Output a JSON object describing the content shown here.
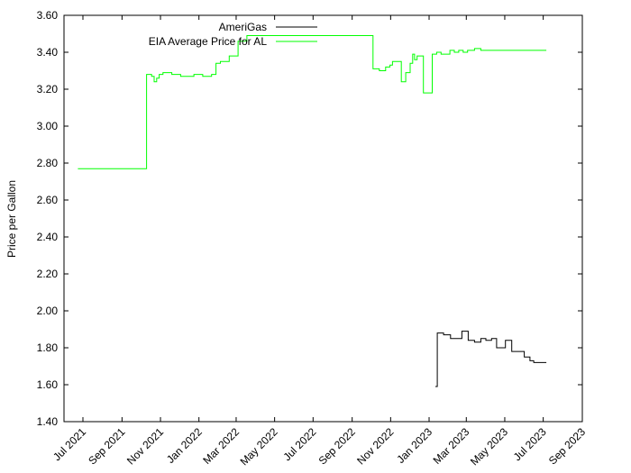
{
  "chart_data": {
    "type": "line",
    "title": "",
    "xlabel": "",
    "ylabel": "Price per Gallon",
    "ylim": [
      1.4,
      3.6
    ],
    "y_ticks": [
      "1.40",
      "1.60",
      "1.80",
      "2.00",
      "2.20",
      "2.40",
      "2.60",
      "2.80",
      "3.00",
      "3.20",
      "3.40",
      "3.60"
    ],
    "xlim": [
      "2021-06-01",
      "2023-09-01"
    ],
    "x_ticks": [
      {
        "date": "2021-07-01",
        "label": "Jul 2021"
      },
      {
        "date": "2021-09-01",
        "label": "Sep 2021"
      },
      {
        "date": "2021-11-01",
        "label": "Nov 2021"
      },
      {
        "date": "2022-01-01",
        "label": "Jan 2022"
      },
      {
        "date": "2022-03-01",
        "label": "Mar 2022"
      },
      {
        "date": "2022-05-01",
        "label": "May 2022"
      },
      {
        "date": "2022-07-01",
        "label": "Jul 2022"
      },
      {
        "date": "2022-09-01",
        "label": "Sep 2022"
      },
      {
        "date": "2022-11-01",
        "label": "Nov 2022"
      },
      {
        "date": "2023-01-01",
        "label": "Jan 2023"
      },
      {
        "date": "2023-03-01",
        "label": "Mar 2023"
      },
      {
        "date": "2023-05-01",
        "label": "May 2023"
      },
      {
        "date": "2023-07-01",
        "label": "Jul 2023"
      },
      {
        "date": "2023-09-01",
        "label": "Sep 2023"
      }
    ],
    "legend_position": "top-center",
    "grid": false,
    "series": [
      {
        "name": "AmeriGas",
        "color": "#000000",
        "step": true,
        "points": [
          [
            "2023-01-11",
            1.59
          ],
          [
            "2023-01-14",
            1.88
          ],
          [
            "2023-01-24",
            1.87
          ],
          [
            "2023-02-04",
            1.85
          ],
          [
            "2023-02-22",
            1.89
          ],
          [
            "2023-03-04",
            1.84
          ],
          [
            "2023-03-14",
            1.83
          ],
          [
            "2023-03-24",
            1.85
          ],
          [
            "2023-04-01",
            1.84
          ],
          [
            "2023-04-10",
            1.85
          ],
          [
            "2023-04-18",
            1.8
          ],
          [
            "2023-05-02",
            1.84
          ],
          [
            "2023-05-12",
            1.78
          ],
          [
            "2023-06-01",
            1.75
          ],
          [
            "2023-06-10",
            1.73
          ],
          [
            "2023-06-16",
            1.72
          ],
          [
            "2023-07-06",
            1.72
          ]
        ]
      },
      {
        "name": "EIA Average Price for AL",
        "color": "#00ff00",
        "step": true,
        "points": [
          [
            "2021-06-23",
            2.77
          ],
          [
            "2021-10-10",
            3.28
          ],
          [
            "2021-10-18",
            3.27
          ],
          [
            "2021-10-22",
            3.24
          ],
          [
            "2021-10-26",
            3.26
          ],
          [
            "2021-10-30",
            3.28
          ],
          [
            "2021-11-05",
            3.29
          ],
          [
            "2021-11-19",
            3.28
          ],
          [
            "2021-12-03",
            3.27
          ],
          [
            "2021-12-24",
            3.28
          ],
          [
            "2022-01-07",
            3.27
          ],
          [
            "2022-01-21",
            3.28
          ],
          [
            "2022-01-28",
            3.34
          ],
          [
            "2022-02-04",
            3.35
          ],
          [
            "2022-02-18",
            3.38
          ],
          [
            "2022-03-04",
            3.46
          ],
          [
            "2022-03-18",
            3.49
          ],
          [
            "2022-10-04",
            3.31
          ],
          [
            "2022-10-14",
            3.3
          ],
          [
            "2022-10-24",
            3.32
          ],
          [
            "2022-10-31",
            3.33
          ],
          [
            "2022-11-04",
            3.35
          ],
          [
            "2022-11-18",
            3.24
          ],
          [
            "2022-11-25",
            3.29
          ],
          [
            "2022-12-02",
            3.34
          ],
          [
            "2022-12-06",
            3.39
          ],
          [
            "2022-12-09",
            3.36
          ],
          [
            "2022-12-13",
            3.38
          ],
          [
            "2022-12-23",
            3.18
          ],
          [
            "2023-01-06",
            3.39
          ],
          [
            "2023-01-13",
            3.4
          ],
          [
            "2023-01-20",
            3.39
          ],
          [
            "2023-02-03",
            3.41
          ],
          [
            "2023-02-10",
            3.4
          ],
          [
            "2023-02-17",
            3.41
          ],
          [
            "2023-02-24",
            3.4
          ],
          [
            "2023-03-03",
            3.41
          ],
          [
            "2023-03-14",
            3.42
          ],
          [
            "2023-03-24",
            3.41
          ],
          [
            "2023-07-06",
            3.41
          ]
        ]
      }
    ]
  }
}
